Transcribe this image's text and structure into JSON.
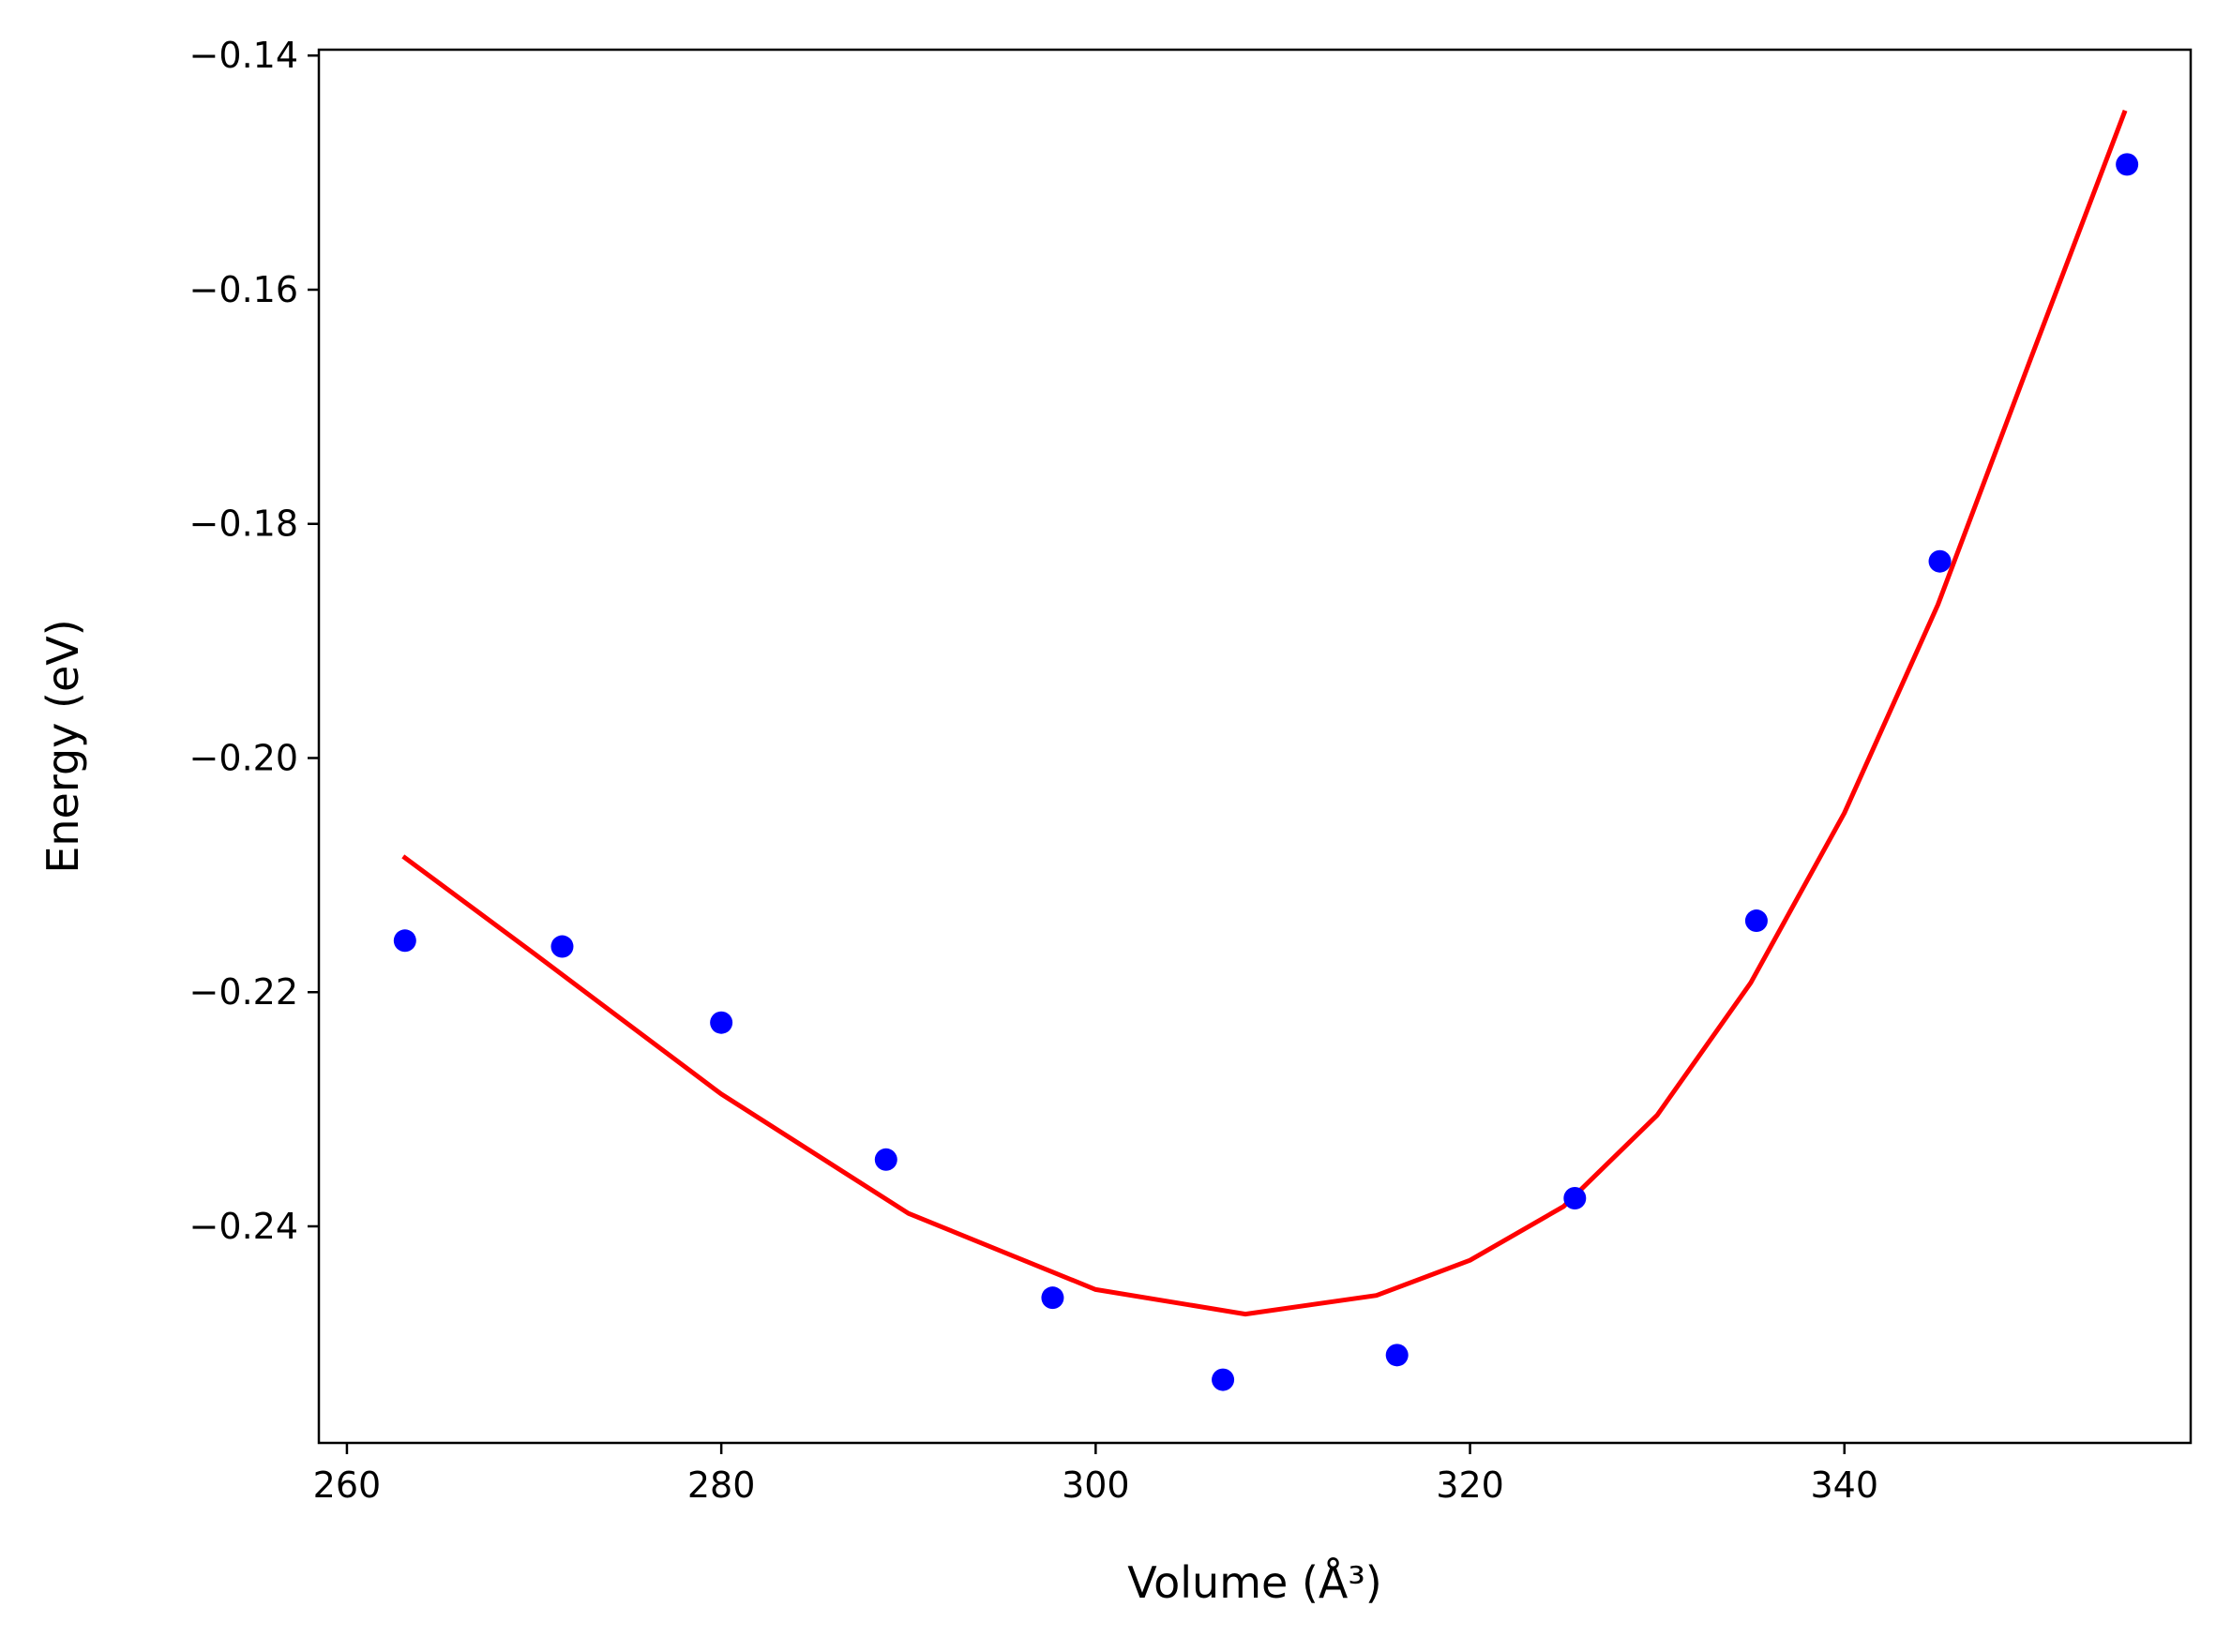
{
  "chart_data": {
    "type": "scatter",
    "title": "",
    "xlabel": "Volume (Å³)",
    "ylabel": "Energy (eV)",
    "xlim": [
      258.5,
      358.5
    ],
    "ylim": [
      -0.2585,
      -0.1395
    ],
    "xticks": [
      260,
      280,
      300,
      320,
      340
    ],
    "xtick_labels": [
      "260",
      "280",
      "300",
      "320",
      "340"
    ],
    "yticks": [
      -0.24,
      -0.22,
      -0.2,
      -0.18,
      -0.16,
      -0.14
    ],
    "ytick_labels": [
      "−0.24",
      "−0.22",
      "−0.20",
      "−0.18",
      "−0.16",
      "−0.14"
    ],
    "grid": false,
    "series": [
      {
        "kind": "scatter",
        "color": "#0000ff",
        "points": [
          {
            "x": 263.1,
            "y": -0.2156
          },
          {
            "x": 271.5,
            "y": -0.2161
          },
          {
            "x": 280.0,
            "y": -0.2226
          },
          {
            "x": 288.8,
            "y": -0.2343
          },
          {
            "x": 297.7,
            "y": -0.2461
          },
          {
            "x": 306.8,
            "y": -0.2531
          },
          {
            "x": 316.1,
            "y": -0.251
          },
          {
            "x": 325.6,
            "y": -0.2376
          },
          {
            "x": 335.3,
            "y": -0.2139
          },
          {
            "x": 345.1,
            "y": -0.1832
          },
          {
            "x": 355.1,
            "y": -0.1493
          }
        ]
      },
      {
        "kind": "line",
        "color": "#ff0000",
        "points": [
          {
            "x": 263.0,
            "y": -0.2084
          },
          {
            "x": 270.0,
            "y": -0.2167
          },
          {
            "x": 280.0,
            "y": -0.2287
          },
          {
            "x": 290.0,
            "y": -0.2389
          },
          {
            "x": 300.0,
            "y": -0.2454
          },
          {
            "x": 308.0,
            "y": -0.2475
          },
          {
            "x": 315.0,
            "y": -0.2459
          },
          {
            "x": 320.0,
            "y": -0.2429
          },
          {
            "x": 325.0,
            "y": -0.2383
          },
          {
            "x": 330.0,
            "y": -0.2305
          },
          {
            "x": 335.0,
            "y": -0.2192
          },
          {
            "x": 340.0,
            "y": -0.2047
          },
          {
            "x": 345.0,
            "y": -0.1869
          },
          {
            "x": 350.0,
            "y": -0.1657
          },
          {
            "x": 355.0,
            "y": -0.1447
          }
        ]
      }
    ]
  }
}
